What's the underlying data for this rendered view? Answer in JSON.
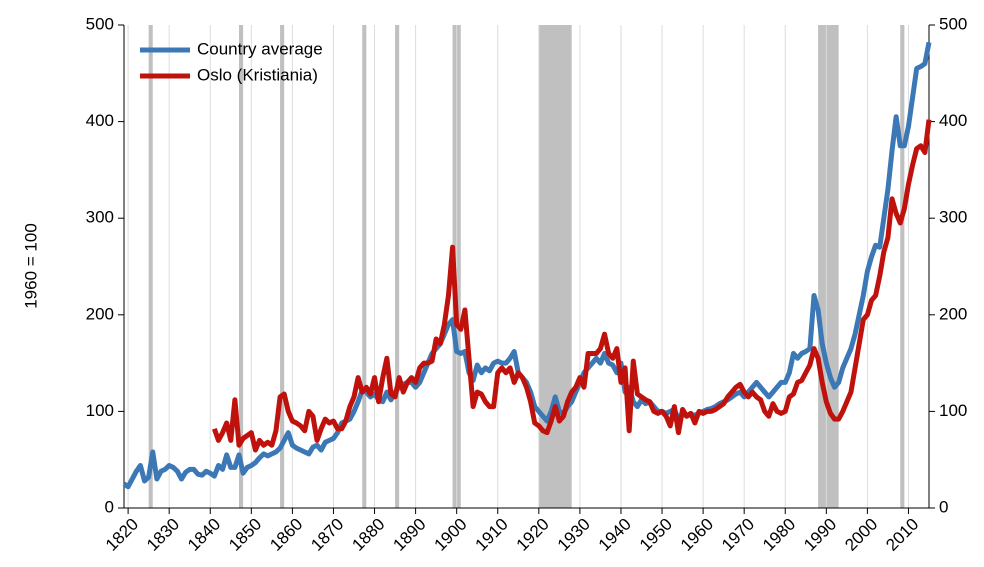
{
  "chart_data": {
    "type": "line",
    "y_axis_label": "1960 = 100",
    "x": [
      1819,
      1820,
      1821,
      1822,
      1823,
      1824,
      1825,
      1826,
      1827,
      1828,
      1829,
      1830,
      1831,
      1832,
      1833,
      1834,
      1835,
      1836,
      1837,
      1838,
      1839,
      1840,
      1841,
      1842,
      1843,
      1844,
      1845,
      1846,
      1847,
      1848,
      1849,
      1850,
      1851,
      1852,
      1853,
      1854,
      1855,
      1856,
      1857,
      1858,
      1859,
      1860,
      1861,
      1862,
      1863,
      1864,
      1865,
      1866,
      1867,
      1868,
      1869,
      1870,
      1871,
      1872,
      1873,
      1874,
      1875,
      1876,
      1877,
      1878,
      1879,
      1880,
      1881,
      1882,
      1883,
      1884,
      1885,
      1886,
      1887,
      1888,
      1889,
      1890,
      1891,
      1892,
      1893,
      1894,
      1895,
      1896,
      1897,
      1898,
      1899,
      1900,
      1901,
      1902,
      1903,
      1904,
      1905,
      1906,
      1907,
      1908,
      1909,
      1910,
      1911,
      1912,
      1913,
      1914,
      1915,
      1916,
      1917,
      1918,
      1919,
      1920,
      1921,
      1922,
      1923,
      1924,
      1925,
      1926,
      1927,
      1928,
      1929,
      1930,
      1931,
      1932,
      1933,
      1934,
      1935,
      1936,
      1937,
      1938,
      1939,
      1940,
      1941,
      1942,
      1943,
      1944,
      1945,
      1946,
      1947,
      1948,
      1949,
      1950,
      1951,
      1952,
      1953,
      1954,
      1955,
      1956,
      1957,
      1958,
      1959,
      1960,
      1961,
      1962,
      1963,
      1964,
      1965,
      1966,
      1967,
      1968,
      1969,
      1970,
      1971,
      1972,
      1973,
      1974,
      1975,
      1976,
      1977,
      1978,
      1979,
      1980,
      1981,
      1982,
      1983,
      1984,
      1985,
      1986,
      1987,
      1988,
      1989,
      1990,
      1991,
      1992,
      1993,
      1994,
      1995,
      1996,
      1997,
      1998,
      1999,
      2000,
      2001,
      2002,
      2003,
      2004,
      2005,
      2006,
      2007,
      2008,
      2009,
      2010,
      2011,
      2012,
      2013,
      2014,
      2015
    ],
    "series": [
      {
        "name": "Country average",
        "color": "#3b78b5",
        "values": [
          25,
          22,
          30,
          38,
          44,
          28,
          32,
          58,
          30,
          38,
          40,
          44,
          42,
          38,
          30,
          37,
          40,
          40,
          35,
          34,
          38,
          36,
          33,
          44,
          40,
          55,
          42,
          42,
          55,
          36,
          42,
          44,
          47,
          52,
          56,
          54,
          56,
          58,
          62,
          70,
          78,
          65,
          62,
          60,
          58,
          56,
          63,
          65,
          60,
          68,
          70,
          72,
          78,
          88,
          90,
          92,
          100,
          110,
          122,
          120,
          115,
          118,
          112,
          110,
          120,
          112,
          120,
          125,
          128,
          130,
          130,
          125,
          130,
          140,
          150,
          160,
          165,
          170,
          180,
          190,
          195,
          162,
          160,
          162,
          140,
          132,
          148,
          140,
          145,
          142,
          150,
          152,
          150,
          150,
          155,
          162,
          140,
          135,
          130,
          120,
          105,
          100,
          95,
          90,
          100,
          115,
          100,
          98,
          105,
          110,
          120,
          130,
          140,
          145,
          150,
          155,
          150,
          160,
          150,
          148,
          140,
          150,
          120,
          125,
          110,
          105,
          112,
          108,
          110,
          105,
          100,
          100,
          98,
          100,
          102,
          92,
          98,
          95,
          97,
          96,
          98,
          100,
          102,
          103,
          105,
          108,
          110,
          112,
          115,
          118,
          120,
          115,
          120,
          125,
          130,
          125,
          120,
          115,
          120,
          125,
          130,
          130,
          140,
          160,
          155,
          160,
          162,
          165,
          220,
          205,
          170,
          150,
          135,
          125,
          130,
          145,
          155,
          165,
          180,
          200,
          220,
          245,
          260,
          272,
          270,
          300,
          330,
          370,
          405,
          375,
          375,
          395,
          425,
          455,
          457,
          460,
          482
        ]
      },
      {
        "name": "Oslo (Kristiania)",
        "color": "#c0120c",
        "values": [
          null,
          null,
          null,
          null,
          null,
          null,
          null,
          null,
          null,
          null,
          null,
          null,
          null,
          null,
          null,
          null,
          null,
          null,
          null,
          null,
          null,
          null,
          82,
          70,
          78,
          88,
          70,
          112,
          65,
          72,
          75,
          78,
          60,
          70,
          65,
          68,
          65,
          80,
          115,
          118,
          100,
          90,
          88,
          85,
          80,
          100,
          95,
          70,
          82,
          92,
          88,
          90,
          82,
          82,
          90,
          105,
          115,
          135,
          120,
          125,
          118,
          135,
          110,
          135,
          155,
          118,
          115,
          135,
          120,
          130,
          135,
          130,
          145,
          150,
          150,
          152,
          175,
          170,
          190,
          220,
          270,
          190,
          185,
          205,
          155,
          105,
          120,
          118,
          110,
          105,
          105,
          140,
          145,
          140,
          145,
          130,
          140,
          135,
          125,
          110,
          88,
          85,
          80,
          78,
          90,
          105,
          90,
          95,
          110,
          120,
          125,
          135,
          125,
          160,
          160,
          160,
          165,
          180,
          160,
          155,
          165,
          130,
          145,
          80,
          152,
          118,
          115,
          112,
          110,
          100,
          98,
          100,
          95,
          85,
          105,
          78,
          102,
          95,
          98,
          88,
          100,
          98,
          100,
          100,
          102,
          105,
          108,
          115,
          120,
          125,
          128,
          120,
          115,
          120,
          115,
          112,
          100,
          95,
          108,
          100,
          98,
          100,
          115,
          118,
          130,
          132,
          140,
          148,
          165,
          155,
          130,
          110,
          98,
          92,
          92,
          100,
          110,
          120,
          145,
          170,
          195,
          200,
          215,
          220,
          240,
          265,
          280,
          320,
          305,
          295,
          310,
          335,
          355,
          372,
          375,
          368,
          402
        ]
      }
    ],
    "shaded_periods": [
      [
        1825,
        1826
      ],
      [
        1847,
        1848
      ],
      [
        1857,
        1858
      ],
      [
        1877,
        1878
      ],
      [
        1885,
        1886
      ],
      [
        1899,
        1901
      ],
      [
        1920,
        1928
      ],
      [
        1988,
        1993
      ],
      [
        2008,
        2009
      ]
    ],
    "shade_color": "#c0c0c0",
    "xlim": [
      1819,
      2015
    ],
    "xticks": [
      1820,
      1830,
      1840,
      1850,
      1860,
      1870,
      1880,
      1890,
      1900,
      1910,
      1920,
      1930,
      1940,
      1950,
      1960,
      1970,
      1980,
      1990,
      2000,
      2010
    ],
    "ylim": [
      0,
      500
    ],
    "yticks": [
      0,
      100,
      200,
      300,
      400,
      500
    ],
    "y2lim": [
      0,
      500
    ],
    "y2ticks": [
      0,
      100,
      200,
      300,
      400,
      500
    ],
    "grid": "x",
    "legend": "upper left"
  }
}
